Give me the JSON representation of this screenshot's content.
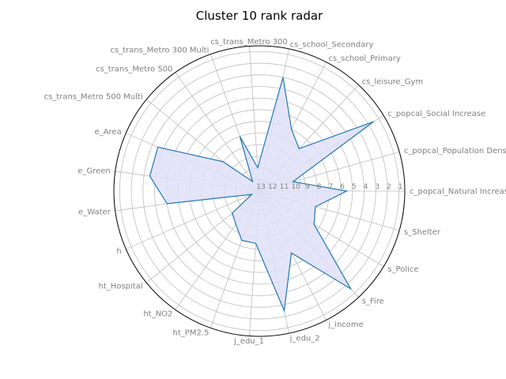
{
  "chart_data": {
    "type": "radar",
    "title": "Cluster 10 rank radar",
    "categories": [
      "c_popcal_Natural Increase",
      "c_popcal_Population Density",
      "c_popcal_Social Increase",
      "cs_leisure_Gym",
      "cs_school_Primary",
      "cs_school_Secondary",
      "cs_trans_Metro 300",
      "cs_trans_Metro 300 Multi",
      "cs_trans_Metro 500",
      "cs_trans_Metro 500 Multi",
      "e_Area",
      "e_Green",
      "e_Water",
      "h",
      "ht_Hospital",
      "ht_NO2",
      "ht_PM2.5",
      "j_edu_1",
      "j_edu_2",
      "j_income",
      "s_Fire",
      "s_Police",
      "s_Shelter"
    ],
    "values": [
      5.5,
      10,
      1.5,
      8,
      7,
      3,
      11,
      8,
      12,
      9,
      3.5,
      3.5,
      5,
      12.3,
      10,
      9.5,
      8.5,
      8.5,
      2.5,
      7,
      1.5,
      7.5,
      8
    ],
    "r_ticks": [
      1,
      2,
      3,
      4,
      5,
      6,
      7,
      8,
      9,
      10,
      11,
      12,
      13
    ],
    "r_tick_labels": [
      "1",
      "2",
      "3",
      "4",
      "5",
      "6",
      "7",
      "8",
      "9",
      "10",
      "11",
      "12",
      "13"
    ],
    "r_range": [
      13,
      0.5
    ],
    "r_reversed": true,
    "grid": true,
    "colors": {
      "line": "#1f77b4",
      "fill": "#e0e0f8",
      "grid": "#bdbdbd",
      "label": "#808080"
    }
  }
}
